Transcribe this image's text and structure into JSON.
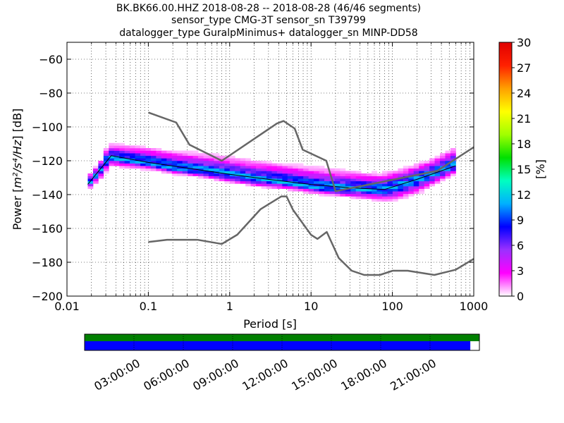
{
  "chart_data": [
    {
      "type": "heatmap",
      "title_lines": [
        "BK.BK66.00.HHZ   2018-08-28 -- 2018-08-28  (46/46 segments)",
        "sensor_type CMG-3T sensor_sn T39799",
        "datalogger_type GuralpMinimus+ datalogger_sn MINP-DD58"
      ],
      "xlabel": "Period [s]",
      "ylabel": "Power [m²/s⁴/Hz] [dB]",
      "ylabel_parts": {
        "prefix": "Power [",
        "unit": "m²/s⁴/Hz",
        "suffix": "] [dB]"
      },
      "xscale": "log",
      "xlim": [
        0.01,
        1000
      ],
      "ylim": [
        -200,
        -50
      ],
      "xticks": [
        {
          "value": 0.01,
          "label": "0.01"
        },
        {
          "value": 0.1,
          "label": "0.1"
        },
        {
          "value": 1,
          "label": "1"
        },
        {
          "value": 10,
          "label": "10"
        },
        {
          "value": 100,
          "label": "100"
        },
        {
          "value": 1000,
          "label": "1000"
        }
      ],
      "yticks": [
        {
          "value": -60,
          "label": "−60"
        },
        {
          "value": -80,
          "label": "−80"
        },
        {
          "value": -100,
          "label": "−100"
        },
        {
          "value": -120,
          "label": "−120"
        },
        {
          "value": -140,
          "label": "−140"
        },
        {
          "value": -160,
          "label": "−160"
        },
        {
          "value": -180,
          "label": "−180"
        },
        {
          "value": -200,
          "label": "−200"
        }
      ],
      "grid": "dotted",
      "period_range": [
        0.018,
        600
      ],
      "density": {
        "value_range": [
          0,
          30
        ],
        "unit": "%",
        "mode_curve": [
          [
            0.018,
            -134
          ],
          [
            0.025,
            -126
          ],
          [
            0.03,
            -120
          ],
          [
            0.035,
            -118
          ],
          [
            0.05,
            -119
          ],
          [
            0.1,
            -121
          ],
          [
            0.2,
            -124
          ],
          [
            0.5,
            -126
          ],
          [
            1,
            -128
          ],
          [
            2,
            -131
          ],
          [
            5,
            -133
          ],
          [
            10,
            -135
          ],
          [
            20,
            -136
          ],
          [
            50,
            -137
          ],
          [
            80,
            -137
          ],
          [
            150,
            -133
          ],
          [
            300,
            -128
          ],
          [
            600,
            -122
          ]
        ],
        "low_edge": [
          [
            0.018,
            -138
          ],
          [
            0.025,
            -134
          ],
          [
            0.035,
            -125
          ],
          [
            0.1,
            -127
          ],
          [
            0.5,
            -132
          ],
          [
            1,
            -135
          ],
          [
            5,
            -138
          ],
          [
            10,
            -141
          ],
          [
            20,
            -143
          ],
          [
            50,
            -145
          ],
          [
            100,
            -147
          ],
          [
            200,
            -143
          ],
          [
            300,
            -138
          ],
          [
            600,
            -130
          ]
        ],
        "high_edge": [
          [
            0.018,
            -126
          ],
          [
            0.025,
            -120
          ],
          [
            0.03,
            -108
          ],
          [
            0.035,
            -104
          ],
          [
            0.1,
            -105
          ],
          [
            0.3,
            -107
          ],
          [
            1,
            -110
          ],
          [
            3,
            -112
          ],
          [
            10,
            -115
          ],
          [
            30,
            -118
          ],
          [
            70,
            -120
          ],
          [
            150,
            -117
          ],
          [
            300,
            -112
          ],
          [
            600,
            -104
          ]
        ]
      },
      "mean_line": [
        [
          0.018,
          -134
        ],
        [
          0.035,
          -117
        ],
        [
          0.1,
          -121
        ],
        [
          1,
          -128
        ],
        [
          3,
          -131
        ],
        [
          10,
          -134
        ],
        [
          30,
          -136
        ],
        [
          80,
          -137
        ],
        [
          200,
          -131
        ],
        [
          600,
          -123
        ]
      ],
      "noise_models": [
        {
          "name": "NHNM",
          "color": "#666666",
          "points": [
            [
              0.1,
              -91.5
            ],
            [
              0.22,
              -97.4
            ],
            [
              0.32,
              -110.5
            ],
            [
              0.8,
              -120
            ],
            [
              3.8,
              -98
            ],
            [
              4.6,
              -96.5
            ],
            [
              6.3,
              -101
            ],
            [
              7.9,
              -113.5
            ],
            [
              15.4,
              -120
            ],
            [
              20,
              -138
            ],
            [
              354.8,
              -126
            ],
            [
              1000,
              -112
            ]
          ]
        },
        {
          "name": "NLNM",
          "color": "#666666",
          "points": [
            [
              0.1,
              -168
            ],
            [
              0.17,
              -166.7
            ],
            [
              0.4,
              -166.7
            ],
            [
              0.8,
              -169.2
            ],
            [
              1.24,
              -163.7
            ],
            [
              2.4,
              -148.6
            ],
            [
              4.3,
              -141.1
            ],
            [
              5.0,
              -141.1
            ],
            [
              6.0,
              -149
            ],
            [
              10.0,
              -163.8
            ],
            [
              12.0,
              -166.2
            ],
            [
              15.6,
              -162.1
            ],
            [
              21.9,
              -177.5
            ],
            [
              31.6,
              -185
            ],
            [
              45,
              -187.5
            ],
            [
              70,
              -187.5
            ],
            [
              101,
              -185
            ],
            [
              154,
              -185
            ],
            [
              328,
              -187.5
            ],
            [
              600,
              -184.4
            ],
            [
              1000,
              -178
            ]
          ]
        }
      ],
      "colorbar": {
        "label": "[%]",
        "ticks": [
          {
            "value": 0,
            "label": "0"
          },
          {
            "value": 3,
            "label": "3"
          },
          {
            "value": 6,
            "label": "6"
          },
          {
            "value": 9,
            "label": "9"
          },
          {
            "value": 12,
            "label": "12"
          },
          {
            "value": 15,
            "label": "15"
          },
          {
            "value": 18,
            "label": "18"
          },
          {
            "value": 21,
            "label": "21"
          },
          {
            "value": 24,
            "label": "24"
          },
          {
            "value": 27,
            "label": "27"
          },
          {
            "value": 30,
            "label": "30"
          }
        ],
        "colormap": [
          "#ffffff",
          "#ff00ff",
          "#9b30ff",
          "#0000ff",
          "#00b0ff",
          "#00ffc0",
          "#00e000",
          "#a0ff00",
          "#ffff00",
          "#ffa000",
          "#ff2000",
          "#e00000"
        ]
      }
    },
    {
      "type": "timeline",
      "time_range_hours": [
        0,
        24
      ],
      "coverage_fraction": 0.977,
      "colors": {
        "data_bar": "#0000ff",
        "segment_bar": "#008000"
      },
      "ticks": [
        {
          "hours": 3,
          "label": "03:00:00"
        },
        {
          "hours": 6,
          "label": "06:00:00"
        },
        {
          "hours": 9,
          "label": "09:00:00"
        },
        {
          "hours": 12,
          "label": "12:00:00"
        },
        {
          "hours": 15,
          "label": "15:00:00"
        },
        {
          "hours": 18,
          "label": "18:00:00"
        },
        {
          "hours": 21,
          "label": "21:00:00"
        }
      ]
    }
  ]
}
